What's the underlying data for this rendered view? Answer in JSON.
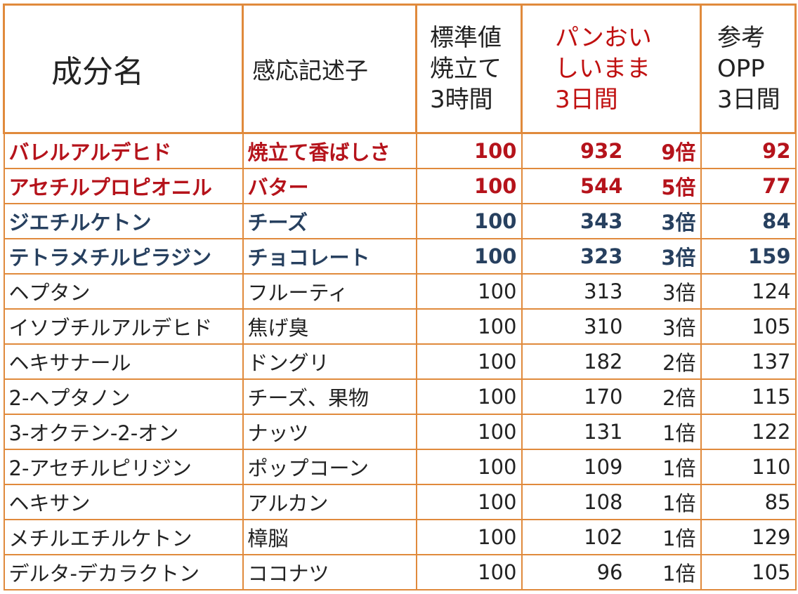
{
  "header": {
    "name": "成分名",
    "descriptor": "感応記述子",
    "standard": [
      "標準値",
      "焼立て",
      "3時間"
    ],
    "pan": [
      "パンおい",
      "しいまま",
      "3日間"
    ],
    "opp": [
      "参考",
      "OPP",
      "3日間"
    ]
  },
  "colors": {
    "border": "#e08a3c",
    "highlight_red": "#b5131b",
    "highlight_navy": "#27405f",
    "text": "#222222"
  },
  "rows": [
    {
      "name": "バレルアルデヒド",
      "desc": "焼立て香ばしさ",
      "std": "100",
      "pan": "932",
      "mul": "9倍",
      "opp": "92",
      "style": "red"
    },
    {
      "name": "アセチルプロピオニル",
      "desc": "バター",
      "std": "100",
      "pan": "544",
      "mul": "5倍",
      "opp": "77",
      "style": "red"
    },
    {
      "name": "ジエチルケトン",
      "desc": "チーズ",
      "std": "100",
      "pan": "343",
      "mul": "3倍",
      "opp": "84",
      "style": "navy"
    },
    {
      "name": "テトラメチルピラジン",
      "desc": "チョコレート",
      "std": "100",
      "pan": "323",
      "mul": "3倍",
      "opp": "159",
      "style": "navy"
    },
    {
      "name": "ヘプタン",
      "desc": "フルーティ",
      "std": "100",
      "pan": "313",
      "mul": "3倍",
      "opp": "124",
      "style": "plain"
    },
    {
      "name": "イソブチルアルデヒド",
      "desc": "焦げ臭",
      "std": "100",
      "pan": "310",
      "mul": "3倍",
      "opp": "105",
      "style": "plain"
    },
    {
      "name": "ヘキサナール",
      "desc": "ドングリ",
      "std": "100",
      "pan": "182",
      "mul": "2倍",
      "opp": "137",
      "style": "plain"
    },
    {
      "name": "2-ヘプタノン",
      "desc": "チーズ、果物",
      "std": "100",
      "pan": "170",
      "mul": "2倍",
      "opp": "115",
      "style": "plain"
    },
    {
      "name": "3-オクテン-2-オン",
      "desc": "ナッツ",
      "std": "100",
      "pan": "131",
      "mul": "1倍",
      "opp": "122",
      "style": "plain"
    },
    {
      "name": "2-アセチルピリジン",
      "desc": "ポップコーン",
      "std": "100",
      "pan": "109",
      "mul": "1倍",
      "opp": "110",
      "style": "plain"
    },
    {
      "name": "ヘキサン",
      "desc": "アルカン",
      "std": "100",
      "pan": "108",
      "mul": "1倍",
      "opp": "85",
      "style": "plain"
    },
    {
      "name": "メチルエチルケトン",
      "desc": "樟脳",
      "std": "100",
      "pan": "102",
      "mul": "1倍",
      "opp": "129",
      "style": "plain"
    },
    {
      "name": "デルタ-デカラクトン",
      "desc": "ココナツ",
      "std": "100",
      "pan": "96",
      "mul": "1倍",
      "opp": "105",
      "style": "plain"
    }
  ]
}
